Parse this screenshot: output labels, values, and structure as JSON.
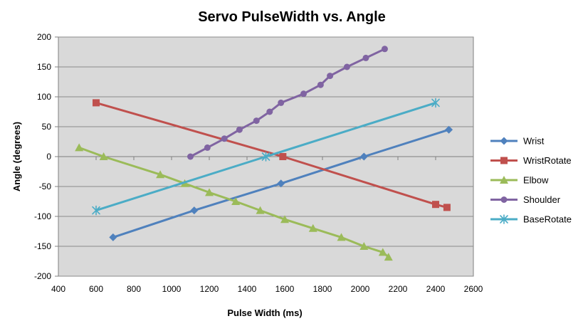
{
  "chart_data": {
    "type": "line",
    "title": "Servo PulseWidth vs. Angle",
    "xlabel": "Pulse Width (ms)",
    "ylabel": "Angle (degrees)",
    "xlim": [
      400,
      2600
    ],
    "ylim": [
      -200,
      200
    ],
    "xticks": [
      400,
      600,
      800,
      1000,
      1200,
      1400,
      1600,
      1800,
      2000,
      2200,
      2400,
      2600
    ],
    "yticks": [
      -200,
      -150,
      -100,
      -50,
      0,
      50,
      100,
      150,
      200
    ],
    "grid": "horizontal",
    "legend_position": "right",
    "background": "#d9d9d9",
    "series": [
      {
        "name": "Wrist",
        "color": "#4f81bd",
        "marker": "diamond",
        "points": [
          [
            690,
            -135
          ],
          [
            1120,
            -90
          ],
          [
            1580,
            -45
          ],
          [
            2020,
            0
          ],
          [
            2470,
            45
          ]
        ]
      },
      {
        "name": "WristRotate",
        "color": "#c0504d",
        "marker": "square",
        "points": [
          [
            600,
            90
          ],
          [
            1590,
            0
          ],
          [
            2400,
            -80
          ],
          [
            2460,
            -85
          ]
        ]
      },
      {
        "name": "Elbow",
        "color": "#9bbb59",
        "marker": "triangle",
        "points": [
          [
            510,
            15
          ],
          [
            640,
            0
          ],
          [
            940,
            -30
          ],
          [
            1070,
            -45
          ],
          [
            1200,
            -60
          ],
          [
            1340,
            -75
          ],
          [
            1470,
            -90
          ],
          [
            1600,
            -105
          ],
          [
            1750,
            -120
          ],
          [
            1900,
            -135
          ],
          [
            2020,
            -150
          ],
          [
            2120,
            -160
          ],
          [
            2150,
            -168
          ]
        ]
      },
      {
        "name": "Shoulder",
        "color": "#8064a2",
        "marker": "circle",
        "points": [
          [
            1100,
            0
          ],
          [
            1190,
            15
          ],
          [
            1280,
            30
          ],
          [
            1360,
            45
          ],
          [
            1450,
            60
          ],
          [
            1520,
            75
          ],
          [
            1580,
            90
          ],
          [
            1700,
            105
          ],
          [
            1790,
            120
          ],
          [
            1840,
            135
          ],
          [
            1930,
            150
          ],
          [
            2030,
            165
          ],
          [
            2130,
            180
          ]
        ]
      },
      {
        "name": "BaseRotate",
        "color": "#4bacc6",
        "marker": "star",
        "points": [
          [
            600,
            -90
          ],
          [
            1500,
            0
          ],
          [
            2400,
            90
          ]
        ]
      }
    ]
  }
}
